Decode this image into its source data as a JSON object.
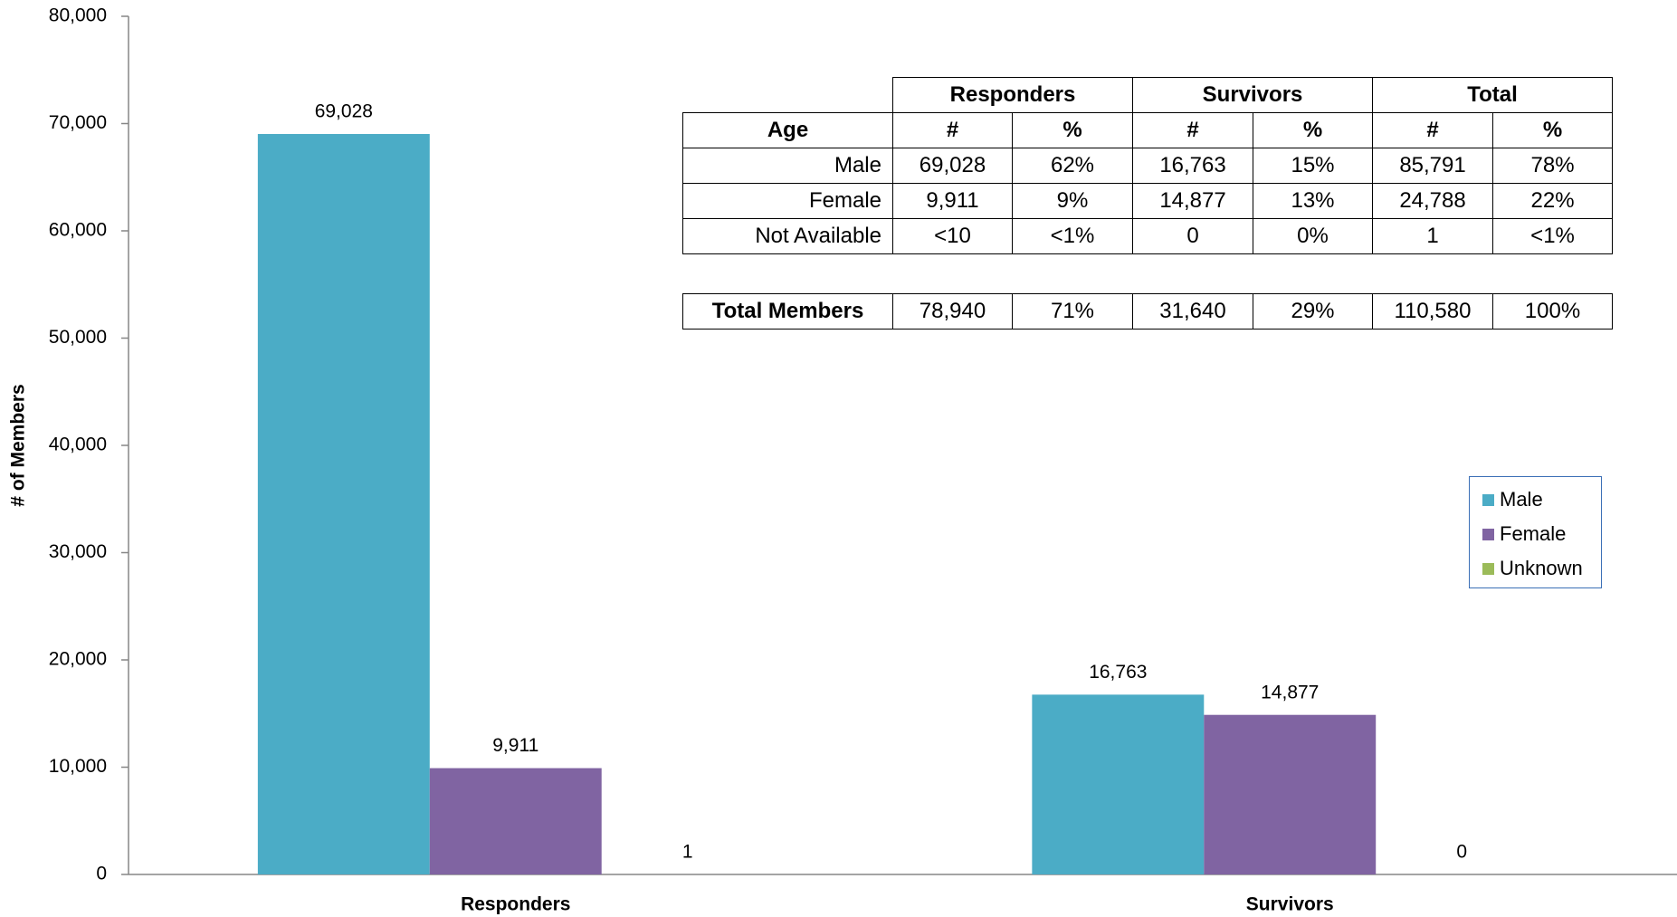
{
  "chart_data": {
    "type": "bar",
    "y_label": "# of Members",
    "categories": [
      "Responders",
      "Survivors"
    ],
    "series": [
      {
        "name": "Male",
        "color": "#4bacc6",
        "values": [
          69028,
          16763
        ],
        "value_labels": [
          "69,028",
          "16,763"
        ]
      },
      {
        "name": "Female",
        "color": "#8064a2",
        "values": [
          9911,
          14877
        ],
        "value_labels": [
          "9,911",
          "14,877"
        ]
      },
      {
        "name": "Unknown",
        "color": "#9bbb59",
        "values": [
          1,
          0
        ]
      }
    ],
    "ylim": [
      0,
      80000
    ],
    "yticks": [
      0,
      {
        "value": 10000,
        "label": "10,000"
      },
      {
        "value": 20000,
        "label": "20,000"
      },
      {
        "value": 30000,
        "label": "30,000"
      },
      {
        "value": 40000,
        "label": "40,000"
      },
      {
        "value": 50000,
        "label": "50,000"
      },
      {
        "value": 60000,
        "label": "60,000"
      },
      {
        "value": 70000,
        "label": "70,000"
      },
      {
        "value": 80000,
        "label": "80,000"
      }
    ],
    "grid": false,
    "legend": "right",
    "table": {
      "groups": [
        "Responders",
        "Survivors",
        "Total"
      ],
      "header": [
        "Age",
        "#",
        "%",
        "#",
        "%",
        "#",
        "%"
      ],
      "rows": [
        [
          "Male",
          "69,028",
          "62%",
          "16,763",
          "15%",
          "85,791",
          "78%"
        ],
        [
          "Female",
          "9,911",
          "9%",
          "14,877",
          "13%",
          "24,788",
          "22%"
        ],
        [
          "Not Available",
          "<10",
          "<1%",
          "0",
          "0%",
          "1",
          "<1%"
        ]
      ],
      "total": [
        "Total Members",
        "78,940",
        "71%",
        "31,640",
        "29%",
        "110,580",
        "100%"
      ]
    }
  }
}
